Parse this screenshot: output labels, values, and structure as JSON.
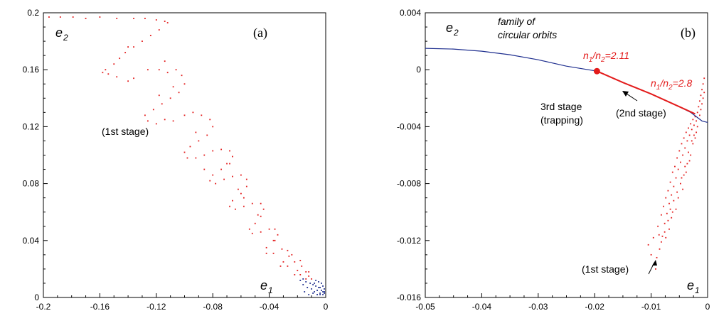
{
  "colors": {
    "red": "#e31b1b",
    "blue": "#1f2f8f",
    "axis": "#000000"
  },
  "chart_data": [
    {
      "type": "scatter",
      "panel_label": "(a)",
      "xlabel": "e1",
      "ylabel": "e2",
      "xlim": [
        -0.2,
        0
      ],
      "ylim": [
        0,
        0.2
      ],
      "xticks": [
        "-0.2",
        "-0.16",
        "-0.12",
        "-0.08",
        "-0.04",
        "0"
      ],
      "yticks": [
        "0",
        "0.04",
        "0.08",
        "0.12",
        "0.16",
        "0.2"
      ],
      "annotations": {
        "stage1": "(1st stage)"
      },
      "series": [
        {
          "color": "red",
          "points": [
            [
              -0.196,
              0.197
            ],
            [
              -0.188,
              0.197
            ],
            [
              -0.179,
              0.197
            ],
            [
              -0.17,
              0.196
            ],
            [
              -0.16,
              0.197
            ],
            [
              -0.148,
              0.196
            ],
            [
              -0.136,
              0.196
            ],
            [
              -0.128,
              0.196
            ],
            [
              -0.12,
              0.195
            ],
            [
              -0.114,
              0.194
            ],
            [
              -0.112,
              0.193
            ],
            [
              -0.118,
              0.188
            ],
            [
              -0.124,
              0.184
            ],
            [
              -0.13,
              0.18
            ],
            [
              -0.136,
              0.176
            ],
            [
              -0.142,
              0.172
            ],
            [
              -0.146,
              0.168
            ],
            [
              -0.15,
              0.164
            ],
            [
              -0.156,
              0.16
            ],
            [
              -0.158,
              0.158
            ],
            [
              -0.154,
              0.157
            ],
            [
              -0.148,
              0.155
            ],
            [
              -0.14,
              0.152
            ],
            [
              -0.136,
              0.154
            ],
            [
              -0.126,
              0.16
            ],
            [
              -0.118,
              0.16
            ],
            [
              -0.112,
              0.158
            ],
            [
              -0.106,
              0.16
            ],
            [
              -0.102,
              0.156
            ],
            [
              -0.1,
              0.15
            ],
            [
              -0.104,
              0.144
            ],
            [
              -0.11,
              0.14
            ],
            [
              -0.116,
              0.136
            ],
            [
              -0.122,
              0.132
            ],
            [
              -0.128,
              0.128
            ],
            [
              -0.126,
              0.124
            ],
            [
              -0.12,
              0.122
            ],
            [
              -0.114,
              0.125
            ],
            [
              -0.108,
              0.124
            ],
            [
              -0.1,
              0.128
            ],
            [
              -0.094,
              0.13
            ],
            [
              -0.088,
              0.128
            ],
            [
              -0.082,
              0.125
            ],
            [
              -0.08,
              0.12
            ],
            [
              -0.084,
              0.114
            ],
            [
              -0.09,
              0.11
            ],
            [
              -0.096,
              0.106
            ],
            [
              -0.1,
              0.102
            ],
            [
              -0.098,
              0.098
            ],
            [
              -0.092,
              0.098
            ],
            [
              -0.086,
              0.1
            ],
            [
              -0.08,
              0.103
            ],
            [
              -0.074,
              0.104
            ],
            [
              -0.068,
              0.103
            ],
            [
              -0.066,
              0.099
            ],
            [
              -0.068,
              0.094
            ],
            [
              -0.074,
              0.09
            ],
            [
              -0.08,
              0.086
            ],
            [
              -0.082,
              0.082
            ],
            [
              -0.078,
              0.08
            ],
            [
              -0.072,
              0.083
            ],
            [
              -0.066,
              0.085
            ],
            [
              -0.06,
              0.086
            ],
            [
              -0.056,
              0.083
            ],
            [
              -0.056,
              0.078
            ],
            [
              -0.06,
              0.073
            ],
            [
              -0.066,
              0.068
            ],
            [
              -0.068,
              0.064
            ],
            [
              -0.064,
              0.062
            ],
            [
              -0.058,
              0.064
            ],
            [
              -0.052,
              0.066
            ],
            [
              -0.046,
              0.066
            ],
            [
              -0.044,
              0.062
            ],
            [
              -0.046,
              0.057
            ],
            [
              -0.05,
              0.052
            ],
            [
              -0.054,
              0.048
            ],
            [
              -0.052,
              0.045
            ],
            [
              -0.046,
              0.046
            ],
            [
              -0.04,
              0.048
            ],
            [
              -0.036,
              0.048
            ],
            [
              -0.034,
              0.044
            ],
            [
              -0.037,
              0.04
            ],
            [
              -0.042,
              0.035
            ],
            [
              -0.042,
              0.031
            ],
            [
              -0.037,
              0.031
            ],
            [
              -0.031,
              0.034
            ],
            [
              -0.027,
              0.033
            ],
            [
              -0.026,
              0.029
            ],
            [
              -0.03,
              0.025
            ],
            [
              -0.032,
              0.022
            ],
            [
              -0.027,
              0.022
            ],
            [
              -0.022,
              0.025
            ],
            [
              -0.018,
              0.026
            ],
            [
              -0.017,
              0.022
            ],
            [
              -0.02,
              0.019
            ],
            [
              -0.022,
              0.016
            ],
            [
              -0.018,
              0.016
            ],
            [
              -0.014,
              0.018
            ],
            [
              -0.012,
              0.018
            ],
            [
              -0.012,
              0.015
            ],
            [
              -0.014,
              0.013
            ],
            [
              -0.01,
              0.013
            ],
            [
              -0.14,
              0.176
            ],
            [
              -0.108,
              0.148
            ],
            [
              -0.092,
              0.116
            ],
            [
              -0.07,
              0.094
            ],
            [
              -0.062,
              0.076
            ],
            [
              -0.048,
              0.058
            ],
            [
              -0.036,
              0.04
            ],
            [
              -0.024,
              0.03
            ],
            [
              -0.114,
              0.166
            ],
            [
              -0.118,
              0.142
            ],
            [
              -0.086,
              0.09
            ],
            [
              -0.058,
              0.07
            ]
          ]
        },
        {
          "color": "blue",
          "points": [
            [
              -0.018,
              0.012
            ],
            [
              -0.016,
              0.009
            ],
            [
              -0.014,
              0.011
            ],
            [
              -0.013,
              0.007
            ],
            [
              -0.011,
              0.01
            ],
            [
              -0.01,
              0.006
            ],
            [
              -0.009,
              0.009
            ],
            [
              -0.008,
              0.004
            ],
            [
              -0.007,
              0.008
            ],
            [
              -0.006,
              0.005
            ],
            [
              -0.005,
              0.011
            ],
            [
              -0.004,
              0.003
            ],
            [
              -0.004,
              0.007
            ],
            [
              -0.003,
              0.005
            ],
            [
              -0.002,
              0.004
            ],
            [
              -0.002,
              0.008
            ],
            [
              -0.001,
              0.003
            ],
            [
              -0.001,
              0.006
            ],
            [
              -0.015,
              0.004
            ],
            [
              -0.012,
              0.002
            ],
            [
              -0.009,
              0.003
            ],
            [
              -0.006,
              0.002
            ],
            [
              -0.004,
              0.002
            ],
            [
              -0.016,
              0.013
            ],
            [
              -0.007,
              0.012
            ],
            [
              -0.003,
              0.01
            ],
            [
              -0.008,
              0.01
            ],
            [
              -0.002,
              0.002
            ],
            [
              -0.001,
              0.004
            ],
            [
              -0.005,
              0.007
            ]
          ]
        }
      ]
    },
    {
      "type": "scatter",
      "panel_label": "(b)",
      "xlabel": "e1",
      "ylabel": "e2",
      "xlim": [
        -0.05,
        0
      ],
      "ylim": [
        -0.016,
        0.004
      ],
      "xticks": [
        "-0.05",
        "-0.04",
        "-0.03",
        "-0.02",
        "-0.01",
        "0"
      ],
      "yticks": [
        "-0.016",
        "-0.012",
        "-0.008",
        "-0.004",
        "0",
        "0.004"
      ],
      "annotations": {
        "family_line1": "family of",
        "family_line2": "circular orbits",
        "stage3_line1": "3rd stage",
        "stage3_line2": "(trapping)",
        "stage2": "(2nd stage)",
        "stage1": "(1st stage)",
        "ratio1_value": "=2.11",
        "ratio2_value": "=2.8"
      },
      "curve": [
        [
          -0.05,
          0.0015
        ],
        [
          -0.045,
          0.00145
        ],
        [
          -0.04,
          0.0013
        ],
        [
          -0.035,
          0.00105
        ],
        [
          -0.03,
          0.0007
        ],
        [
          -0.025,
          0.00025
        ],
        [
          -0.0196,
          -0.0001
        ],
        [
          -0.015,
          -0.0009
        ],
        [
          -0.01,
          -0.0017
        ],
        [
          -0.005,
          -0.0026
        ],
        [
          -0.003,
          -0.003
        ],
        [
          -0.001,
          -0.0036
        ],
        [
          0.0,
          -0.0037
        ]
      ],
      "red_segment": [
        [
          -0.0196,
          -0.0001
        ],
        [
          -0.015,
          -0.0009
        ],
        [
          -0.01,
          -0.0017
        ],
        [
          -0.005,
          -0.0026
        ],
        [
          -0.0022,
          -0.0031
        ]
      ],
      "stage3_point": [
        -0.0196,
        -0.0001
      ],
      "stage2_point": [
        -0.0022,
        -0.0031
      ],
      "series": [
        {
          "color": "red",
          "points": [
            [
              -0.0105,
              -0.0123
            ],
            [
              -0.01,
              -0.013
            ],
            [
              -0.0096,
              -0.0118
            ],
            [
              -0.0092,
              -0.014
            ],
            [
              -0.0088,
              -0.011
            ],
            [
              -0.0085,
              -0.0126
            ],
            [
              -0.0082,
              -0.0102
            ],
            [
              -0.008,
              -0.0117
            ],
            [
              -0.0078,
              -0.0096
            ],
            [
              -0.0076,
              -0.0108
            ],
            [
              -0.0074,
              -0.009
            ],
            [
              -0.0072,
              -0.0101
            ],
            [
              -0.007,
              -0.0085
            ],
            [
              -0.0068,
              -0.0094
            ],
            [
              -0.0066,
              -0.0079
            ],
            [
              -0.0064,
              -0.0088
            ],
            [
              -0.0062,
              -0.0072
            ],
            [
              -0.006,
              -0.0082
            ],
            [
              -0.0058,
              -0.0068
            ],
            [
              -0.0056,
              -0.0076
            ],
            [
              -0.0054,
              -0.0062
            ],
            [
              -0.0052,
              -0.007
            ],
            [
              -0.005,
              -0.0057
            ],
            [
              -0.0048,
              -0.0065
            ],
            [
              -0.0046,
              -0.0052
            ],
            [
              -0.0044,
              -0.006
            ],
            [
              -0.0042,
              -0.0048
            ],
            [
              -0.004,
              -0.0055
            ],
            [
              -0.0038,
              -0.0044
            ],
            [
              -0.0036,
              -0.005
            ],
            [
              -0.0034,
              -0.0041
            ],
            [
              -0.0032,
              -0.0046
            ],
            [
              -0.003,
              -0.0038
            ],
            [
              -0.0028,
              -0.0042
            ],
            [
              -0.0026,
              -0.0035
            ],
            [
              -0.0024,
              -0.0039
            ],
            [
              -0.0022,
              -0.0033
            ],
            [
              -0.002,
              -0.0036
            ],
            [
              -0.0018,
              -0.003
            ],
            [
              -0.0016,
              -0.0026
            ],
            [
              -0.0014,
              -0.0022
            ],
            [
              -0.0012,
              -0.0018
            ],
            [
              -0.001,
              -0.0014
            ],
            [
              -0.0008,
              -0.001
            ],
            [
              -0.0006,
              -0.0006
            ],
            [
              -0.0006,
              -0.0016
            ],
            [
              -0.001,
              -0.0024
            ],
            [
              -0.0014,
              -0.0032
            ],
            [
              -0.002,
              -0.0044
            ],
            [
              -0.0026,
              -0.0052
            ],
            [
              -0.003,
              -0.006
            ],
            [
              -0.0036,
              -0.0066
            ],
            [
              -0.0042,
              -0.0074
            ],
            [
              -0.0048,
              -0.008
            ],
            [
              -0.0054,
              -0.0086
            ],
            [
              -0.006,
              -0.0092
            ],
            [
              -0.0066,
              -0.0098
            ],
            [
              -0.007,
              -0.0106
            ],
            [
              -0.0076,
              -0.0114
            ],
            [
              -0.0082,
              -0.0121
            ],
            [
              -0.0064,
              -0.0104
            ],
            [
              -0.0052,
              -0.009
            ],
            [
              -0.0046,
              -0.0076
            ],
            [
              -0.004,
              -0.0068
            ],
            [
              -0.0034,
              -0.0058
            ],
            [
              -0.0028,
              -0.005
            ],
            [
              -0.0024,
              -0.0046
            ],
            [
              -0.0018,
              -0.004
            ],
            [
              -0.0012,
              -0.0028
            ],
            [
              -0.0008,
              -0.002
            ],
            [
              -0.0056,
              -0.0098
            ],
            [
              -0.0044,
              -0.0084
            ],
            [
              -0.0038,
              -0.0072
            ],
            [
              -0.0032,
              -0.0064
            ],
            [
              -0.0022,
              -0.0048
            ],
            [
              -0.009,
              -0.0132
            ],
            [
              -0.0086,
              -0.0116
            ],
            [
              -0.0074,
              -0.0118
            ],
            [
              -0.0068,
              -0.0112
            ],
            [
              -0.0062,
              -0.01
            ]
          ]
        }
      ]
    }
  ]
}
